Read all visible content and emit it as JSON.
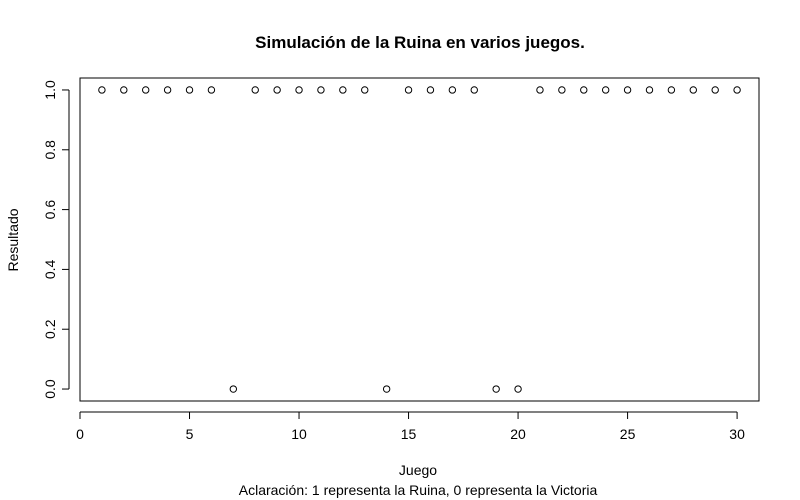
{
  "chart_data": {
    "type": "scatter",
    "title": "Simulación de la Ruina en varios juegos.",
    "xlabel": "Juego",
    "ylabel": "Resultado",
    "subtitle": "Aclaración: 1 representa la Ruina, 0 representa la Victoria",
    "xlim": [
      0,
      31
    ],
    "ylim": [
      -0.04,
      1.04
    ],
    "x_ticks": [
      "0",
      "5",
      "10",
      "15",
      "20",
      "25",
      "30"
    ],
    "y_ticks": [
      "0.0",
      "0.2",
      "0.4",
      "0.6",
      "0.8",
      "1.0"
    ],
    "grid": false,
    "marker": "open-circle",
    "x": [
      1,
      2,
      3,
      4,
      5,
      6,
      7,
      8,
      9,
      10,
      11,
      12,
      13,
      14,
      15,
      16,
      17,
      18,
      19,
      20,
      21,
      22,
      23,
      24,
      25,
      26,
      27,
      28,
      29,
      30
    ],
    "y": [
      1,
      1,
      1,
      1,
      1,
      1,
      0,
      1,
      1,
      1,
      1,
      1,
      1,
      0,
      1,
      1,
      1,
      1,
      0,
      0,
      1,
      1,
      1,
      1,
      1,
      1,
      1,
      1,
      1,
      1
    ]
  }
}
